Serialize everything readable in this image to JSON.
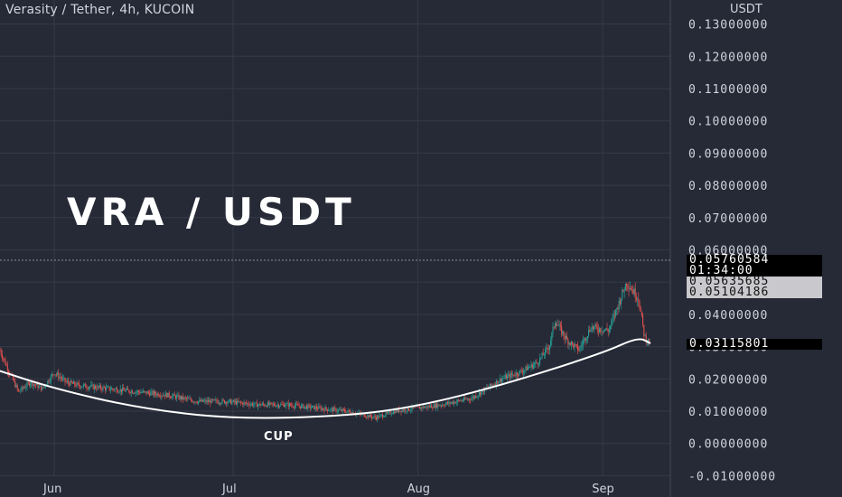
{
  "header": {
    "title": "Verasity / Tether, 4h, KUCOIN"
  },
  "watermark": "VRA / USDT",
  "pattern_label": "CUP",
  "axis": {
    "unit": "USDT"
  },
  "price_tags": {
    "last_price": "0.05760584",
    "countdown": "01:34:00",
    "tag_2": "0.05635685",
    "tag_3": "0.05104186",
    "current": "0.03115801"
  },
  "colors": {
    "background": "#262a36",
    "grid": "#353a48",
    "up_candle": "#26a69a",
    "down_candle": "#ef5350",
    "curve": "#ffffff"
  },
  "chart_data": {
    "type": "candlestick",
    "title": "Verasity / Tether, 4h, KUCOIN",
    "ylabel": "USDT",
    "ylim": [
      -0.01,
      0.135
    ],
    "yticks": [
      "0.13000000",
      "0.12000000",
      "0.11000000",
      "0.10000000",
      "0.09000000",
      "0.08000000",
      "0.07000000",
      "0.06000000",
      "0.05000000",
      "0.04000000",
      "0.03000000",
      "0.02000000",
      "0.01000000",
      "0.00000000",
      "-0.01000000"
    ],
    "xticks": [
      "Jun",
      "Jul",
      "Aug",
      "Sep"
    ],
    "grid": true,
    "price_path": [
      [
        "2021-05-22",
        0.033
      ],
      [
        "2021-05-24",
        0.024
      ],
      [
        "2021-05-26",
        0.016
      ],
      [
        "2021-05-28",
        0.019
      ],
      [
        "2021-05-30",
        0.017
      ],
      [
        "2021-06-01",
        0.022
      ],
      [
        "2021-06-03",
        0.019
      ],
      [
        "2021-06-05",
        0.018
      ],
      [
        "2021-06-10",
        0.017
      ],
      [
        "2021-06-15",
        0.016
      ],
      [
        "2021-06-20",
        0.015
      ],
      [
        "2021-06-25",
        0.013
      ],
      [
        "2021-06-30",
        0.013
      ],
      [
        "2021-07-05",
        0.012
      ],
      [
        "2021-07-10",
        0.012
      ],
      [
        "2021-07-15",
        0.011
      ],
      [
        "2021-07-20",
        0.01
      ],
      [
        "2021-07-25",
        0.008
      ],
      [
        "2021-07-28",
        0.01
      ],
      [
        "2021-08-01",
        0.011
      ],
      [
        "2021-08-05",
        0.012
      ],
      [
        "2021-08-10",
        0.014
      ],
      [
        "2021-08-15",
        0.02
      ],
      [
        "2021-08-18",
        0.022
      ],
      [
        "2021-08-21",
        0.025
      ],
      [
        "2021-08-23",
        0.03
      ],
      [
        "2021-08-24",
        0.038
      ],
      [
        "2021-08-26",
        0.032
      ],
      [
        "2021-08-28",
        0.029
      ],
      [
        "2021-08-30",
        0.036
      ],
      [
        "2021-09-02",
        0.035
      ],
      [
        "2021-09-05",
        0.05
      ],
      [
        "2021-09-07",
        0.045
      ],
      [
        "2021-09-08",
        0.033
      ],
      [
        "2021-09-09",
        0.031
      ]
    ],
    "cup_curve": [
      [
        "2021-05-22",
        0.023
      ],
      [
        "2021-06-01",
        0.017
      ],
      [
        "2021-06-15",
        0.011
      ],
      [
        "2021-07-01",
        0.0075
      ],
      [
        "2021-07-20",
        0.0085
      ],
      [
        "2021-08-01",
        0.0115
      ],
      [
        "2021-08-15",
        0.018
      ],
      [
        "2021-09-01",
        0.028
      ],
      [
        "2021-09-07",
        0.033
      ],
      [
        "2021-09-09",
        0.031
      ]
    ]
  }
}
